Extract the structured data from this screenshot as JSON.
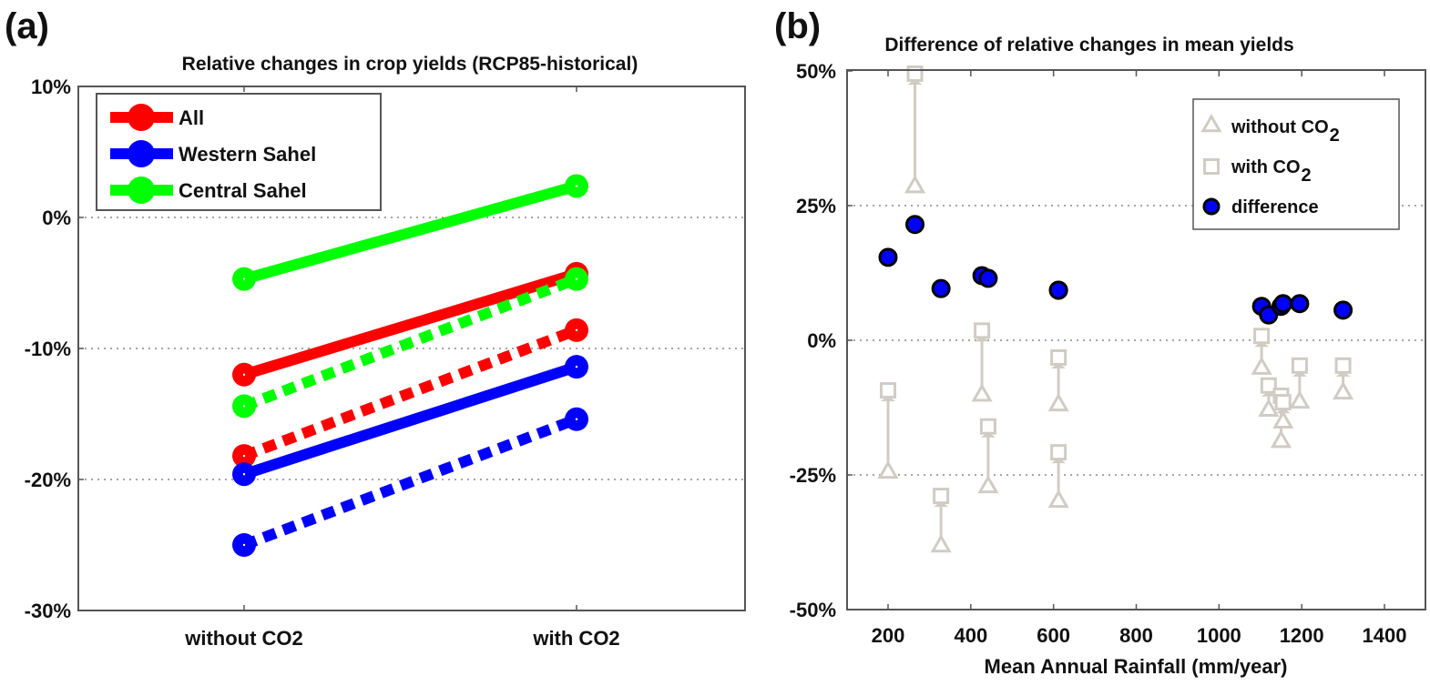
{
  "chart_data": [
    {
      "panel": "(a)",
      "type": "line",
      "title": "Relative changes in crop yields (RCP85-historical)",
      "xlabel": "",
      "ylabel": "",
      "categories": [
        "without CO2",
        "with CO2"
      ],
      "ylim": [
        -30,
        10
      ],
      "yticks": [
        10,
        0,
        -10,
        -20,
        -30
      ],
      "ytick_labels": [
        "10%",
        "0%",
        "-10%",
        "-20%",
        "-30%"
      ],
      "grid": "horizontal dotted",
      "legend_position": "top-left",
      "legend": [
        {
          "label": "All",
          "color": "#ff0000"
        },
        {
          "label": "Western Sahel",
          "color": "#0000ff"
        },
        {
          "label": "Central Sahel",
          "color": "#00ff00"
        }
      ],
      "series": [
        {
          "name": "Central Sahel (solid)",
          "color": "#00ff00",
          "style": "solid",
          "values": [
            -4.7,
            2.4
          ]
        },
        {
          "name": "All (solid)",
          "color": "#ff0000",
          "style": "solid",
          "values": [
            -12.0,
            -4.3
          ]
        },
        {
          "name": "Central Sahel (dashed)",
          "color": "#00ff00",
          "style": "dashed",
          "values": [
            -14.4,
            -4.7
          ]
        },
        {
          "name": "All (dashed)",
          "color": "#ff0000",
          "style": "dashed",
          "values": [
            -18.2,
            -8.6
          ]
        },
        {
          "name": "Western Sahel (solid)",
          "color": "#0000ff",
          "style": "solid",
          "values": [
            -19.6,
            -11.4
          ]
        },
        {
          "name": "Western Sahel (dashed)",
          "color": "#0000ff",
          "style": "dashed",
          "values": [
            -25.0,
            -15.4
          ]
        }
      ]
    },
    {
      "panel": "(b)",
      "type": "scatter",
      "title": "Difference of relative changes in mean yields",
      "xlabel": "Mean Annual Rainfall (mm/year)",
      "ylabel": "",
      "xlim": [
        100,
        1500
      ],
      "ylim": [
        -50,
        50
      ],
      "xticks": [
        200,
        400,
        600,
        800,
        1000,
        1200,
        1400
      ],
      "yticks": [
        50,
        25,
        0,
        -25,
        -50
      ],
      "ytick_labels": [
        "50%",
        "25%",
        "0%",
        "-25%",
        "-50%"
      ],
      "grid": "horizontal dotted",
      "legend_position": "top-right",
      "legend": [
        {
          "label": "without CO",
          "sub": "2",
          "marker": "triangle",
          "color": "#d0ccc4"
        },
        {
          "label": "with CO",
          "sub": "2",
          "marker": "square",
          "color": "#d0ccc4"
        },
        {
          "label": "difference",
          "sub": "",
          "marker": "circle",
          "color": "#0000ff"
        }
      ],
      "marker_color": "#d0ccc4",
      "difference_color": "#0000ff",
      "points": [
        {
          "rainfall": 200,
          "without_co2": -24.3,
          "with_co2": -9.3,
          "difference": 15.4
        },
        {
          "rainfall": 265,
          "without_co2": 28.7,
          "with_co2": 49.5,
          "difference": 21.5
        },
        {
          "rainfall": 328,
          "without_co2": -38.0,
          "with_co2": -28.9,
          "difference": 9.6
        },
        {
          "rainfall": 427,
          "without_co2": -10.0,
          "with_co2": 1.8,
          "difference": 12.0
        },
        {
          "rainfall": 442,
          "without_co2": -27.0,
          "with_co2": -16.0,
          "difference": 11.5
        },
        {
          "rainfall": 612,
          "without_co2": -11.8,
          "with_co2": -3.2,
          "difference": 9.3
        },
        {
          "rainfall": 612,
          "without_co2": -29.7,
          "with_co2": -20.8,
          "difference": 9.3
        },
        {
          "rainfall": 1103,
          "without_co2": -5.0,
          "with_co2": 0.8,
          "difference": 6.3
        },
        {
          "rainfall": 1120,
          "without_co2": -12.8,
          "with_co2": -8.4,
          "difference": 4.7
        },
        {
          "rainfall": 1150,
          "without_co2": -18.6,
          "with_co2": -10.3,
          "difference": 6.3
        },
        {
          "rainfall": 1155,
          "without_co2": -15.0,
          "with_co2": -11.5,
          "difference": 6.8
        },
        {
          "rainfall": 1195,
          "without_co2": -11.3,
          "with_co2": -4.7,
          "difference": 6.8
        },
        {
          "rainfall": 1300,
          "without_co2": -9.6,
          "with_co2": -4.7,
          "difference": 5.6
        }
      ]
    }
  ]
}
